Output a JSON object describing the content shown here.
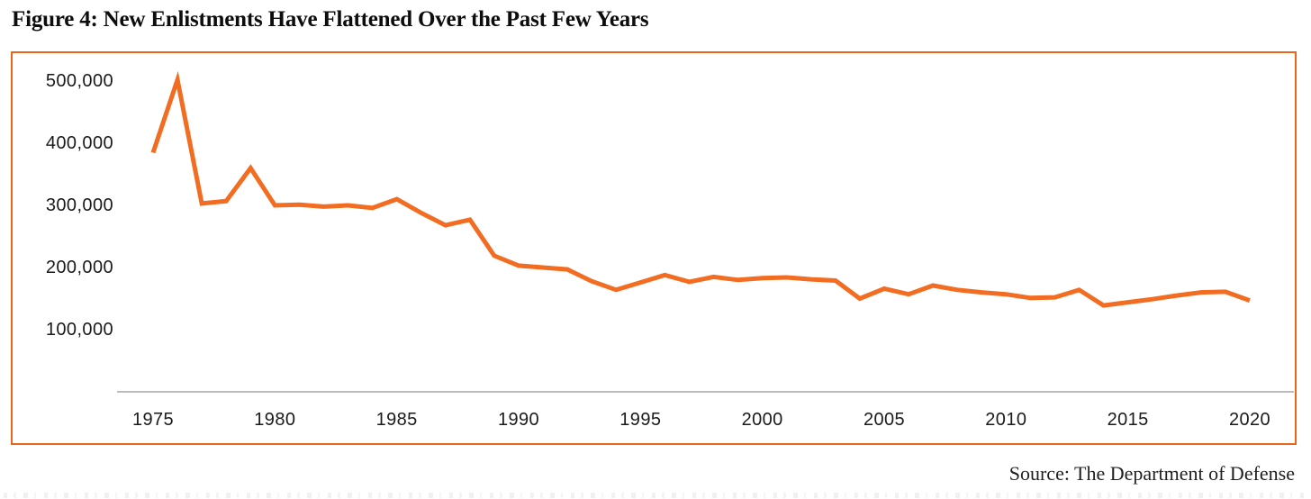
{
  "figure": {
    "title": "Figure 4: New Enlistments Have Flattened Over the Past Few Years",
    "source": "Source: The Department of Defense"
  },
  "colors": {
    "line": "#f26c21",
    "frame_border": "#e8671c",
    "axis_line": "#bcbcbc",
    "text": "#1a1a1a"
  },
  "chart_data": {
    "type": "line",
    "title": "Figure 4: New Enlistments Have Flattened Over the Past Few Years",
    "series_name": "New Enlistments",
    "x": [
      1975,
      1976,
      1977,
      1978,
      1979,
      1980,
      1981,
      1982,
      1983,
      1984,
      1985,
      1986,
      1987,
      1988,
      1989,
      1990,
      1991,
      1992,
      1993,
      1994,
      1995,
      1996,
      1997,
      1998,
      1999,
      2000,
      2001,
      2002,
      2003,
      2004,
      2005,
      2006,
      2007,
      2008,
      2009,
      2010,
      2011,
      2012,
      2013,
      2014,
      2015,
      2016,
      2017,
      2018,
      2019,
      2020
    ],
    "values": [
      385000,
      502000,
      303000,
      307000,
      360000,
      300000,
      301000,
      298000,
      300000,
      296000,
      310000,
      288000,
      268000,
      277000,
      219000,
      203000,
      200000,
      197000,
      178000,
      164000,
      176000,
      188000,
      177000,
      185000,
      180000,
      183000,
      184000,
      181000,
      179000,
      150000,
      166000,
      157000,
      171000,
      164000,
      160000,
      157000,
      151000,
      152000,
      164000,
      139000,
      144000,
      149000,
      155000,
      160000,
      161000,
      147000
    ],
    "xlabel": "",
    "ylabel": "",
    "xlim": [
      1973.5,
      2022
    ],
    "ylim": [
      0,
      520000
    ],
    "grid": false,
    "legend": false,
    "line_color": "#f26c21",
    "x_ticks": [
      "1975",
      "1980",
      "1985",
      "1990",
      "1995",
      "2000",
      "2005",
      "2010",
      "2015",
      "2020"
    ],
    "y_ticks": [
      {
        "label": "500,000",
        "value": 500000
      },
      {
        "label": "400,000",
        "value": 400000
      },
      {
        "label": "300,000",
        "value": 300000
      },
      {
        "label": "200,000",
        "value": 200000
      },
      {
        "label": "100,000",
        "value": 100000
      }
    ]
  }
}
